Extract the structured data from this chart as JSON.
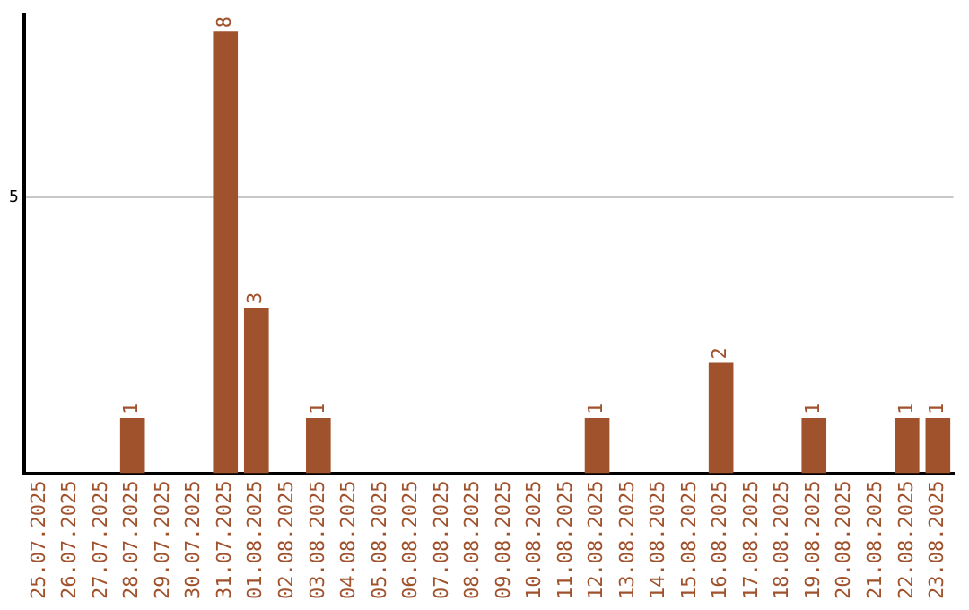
{
  "chart_data": {
    "type": "bar",
    "categories": [
      "25.07.2025",
      "26.07.2025",
      "27.07.2025",
      "28.07.2025",
      "29.07.2025",
      "30.07.2025",
      "31.07.2025",
      "01.08.2025",
      "02.08.2025",
      "03.08.2025",
      "04.08.2025",
      "05.08.2025",
      "06.08.2025",
      "07.08.2025",
      "08.08.2025",
      "09.08.2025",
      "10.08.2025",
      "11.08.2025",
      "12.08.2025",
      "13.08.2025",
      "14.08.2025",
      "15.08.2025",
      "16.08.2025",
      "17.08.2025",
      "18.08.2025",
      "19.08.2025",
      "20.08.2025",
      "21.08.2025",
      "22.08.2025",
      "23.08.2025"
    ],
    "values": [
      0,
      0,
      0,
      1,
      0,
      0,
      8,
      3,
      0,
      1,
      0,
      0,
      0,
      0,
      0,
      0,
      0,
      0,
      1,
      0,
      0,
      0,
      2,
      0,
      0,
      1,
      0,
      0,
      1,
      1
    ],
    "value_labels": [
      null,
      null,
      null,
      "1",
      null,
      null,
      "8",
      "3",
      null,
      "1",
      null,
      null,
      null,
      null,
      null,
      null,
      null,
      null,
      "1",
      null,
      null,
      null,
      "2",
      null,
      null,
      "1",
      null,
      null,
      "1",
      "1"
    ],
    "color": "#a0522d",
    "ylim": [
      0,
      8.3
    ],
    "yticks": [
      5
    ],
    "grid": "y",
    "legend": false
  }
}
